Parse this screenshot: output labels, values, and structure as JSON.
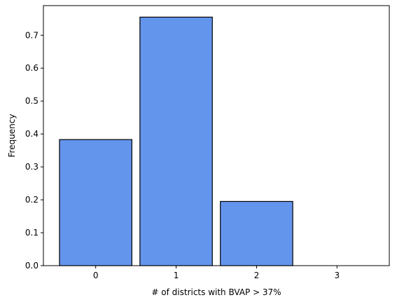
{
  "chart_data": {
    "type": "bar",
    "categories": [
      "0",
      "1",
      "2",
      "3"
    ],
    "values": [
      0.383,
      0.755,
      0.195,
      0.0
    ],
    "title": "",
    "xlabel": "# of districts with BVAP > 37%",
    "ylabel": "Frequency",
    "ylim": [
      0.0,
      0.79
    ],
    "yticks": [
      0.0,
      0.1,
      0.2,
      0.3,
      0.4,
      0.5,
      0.6,
      0.7
    ],
    "ytick_labels": [
      "0.0",
      "0.1",
      "0.2",
      "0.3",
      "0.4",
      "0.5",
      "0.6",
      "0.7"
    ],
    "xlim": [
      -0.65,
      3.65
    ],
    "bar_width": 0.9,
    "grid": false,
    "legend": "none",
    "bar_color": "#6495ED",
    "edge_color": "#000000"
  }
}
